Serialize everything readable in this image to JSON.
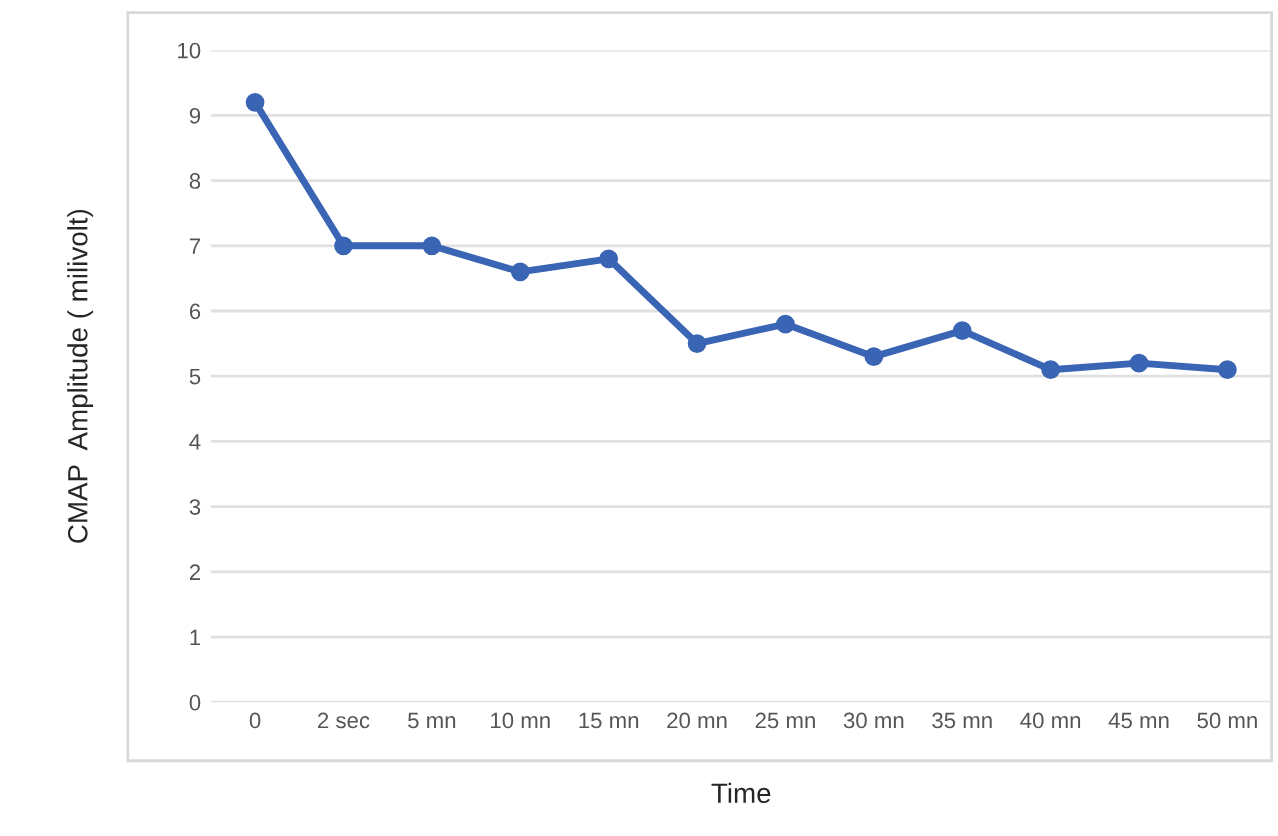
{
  "chart_data": {
    "type": "line",
    "xlabel": "Time",
    "ylabel": "CMAP  Amplitude ( milivolt)",
    "categories": [
      "0",
      "2 sec",
      "5 mn",
      "10 mn",
      "15 mn",
      "20 mn",
      "25 mn",
      "30 mn",
      "35 mn",
      "40 mn",
      "45 mn",
      "50 mn"
    ],
    "series": [
      {
        "color": "#3a64b4",
        "values": [
          9.2,
          7.0,
          7.0,
          6.6,
          6.8,
          5.5,
          5.8,
          5.3,
          5.7,
          5.1,
          5.2,
          5.1
        ]
      }
    ],
    "ylim": [
      0,
      10
    ],
    "yticks": [
      0,
      1,
      2,
      3,
      4,
      5,
      6,
      7,
      8,
      9,
      10
    ],
    "grid": "y",
    "marker": "circle",
    "line_style": "solid"
  }
}
